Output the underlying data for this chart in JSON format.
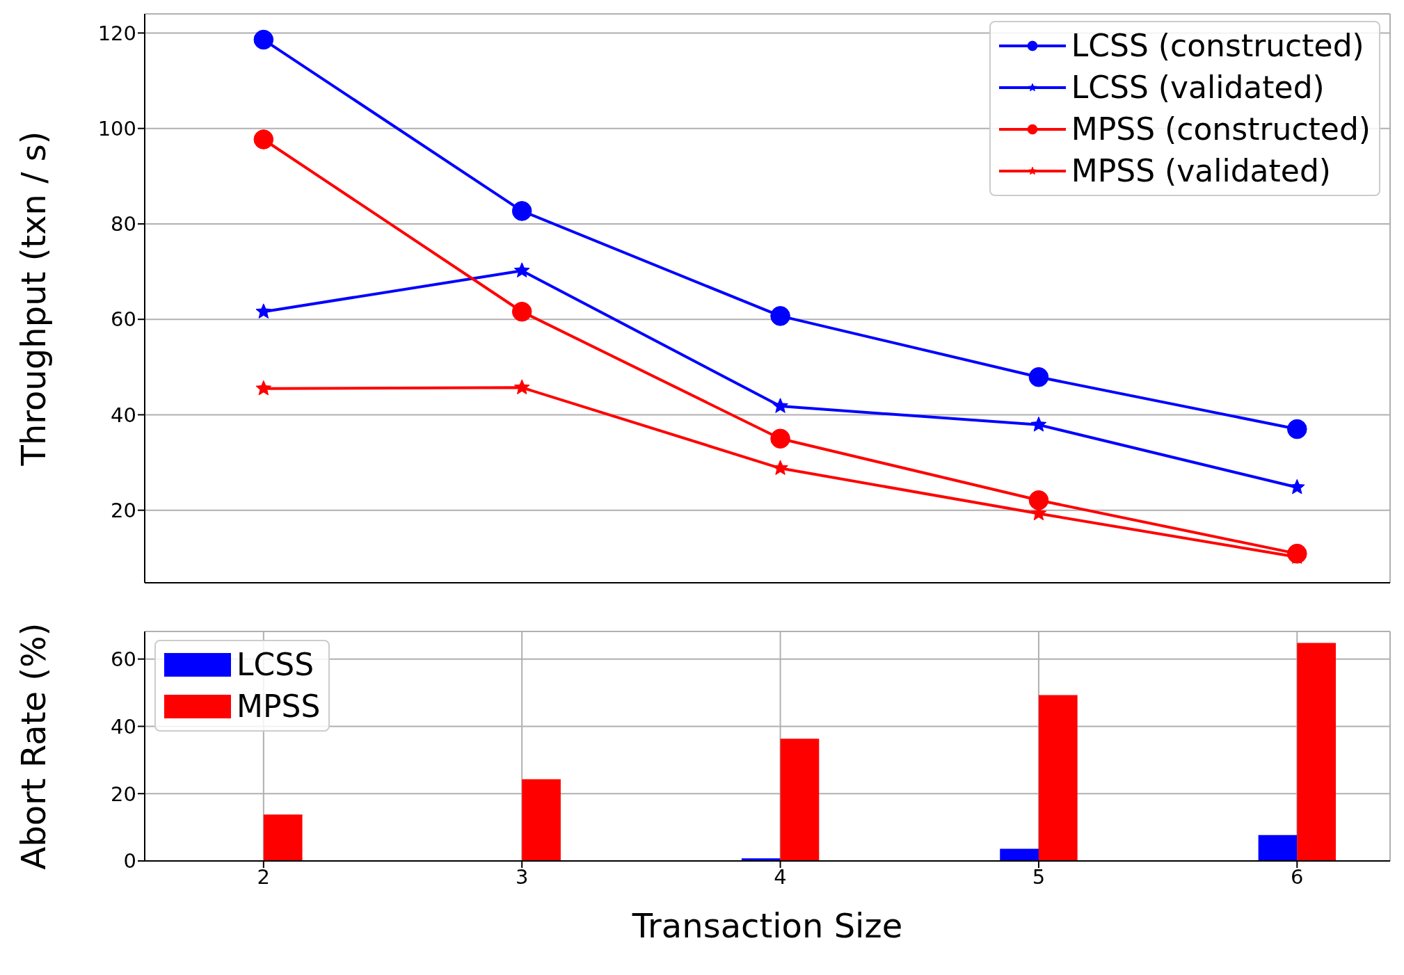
{
  "chart_data": [
    {
      "type": "line",
      "x": [
        2,
        3,
        4,
        5,
        6
      ],
      "xlim": [
        1.54,
        6.36
      ],
      "xticks": [
        2,
        3,
        4,
        5,
        6
      ],
      "ylim": [
        4.8,
        124
      ],
      "yticks": [
        20,
        40,
        60,
        80,
        100,
        120
      ],
      "ylabel": "Throughput (txn / s)",
      "grid": true,
      "legend": "top right",
      "tick_labels": "y",
      "line_style": "solid",
      "series": [
        {
          "name": "LCSS (constructed)",
          "color": "#0000ff",
          "marker": "circle",
          "values": [
            118.6,
            82.7,
            60.7,
            47.9,
            37
          ]
        },
        {
          "name": "LCSS (validated)",
          "color": "#0000ff",
          "marker": "star",
          "values": [
            61.6,
            70.2,
            41.8,
            37.9,
            24.8
          ]
        },
        {
          "name": "MPSS (constructed)",
          "color": "#ff0000",
          "marker": "circle",
          "values": [
            97.7,
            61.6,
            35,
            22.1,
            10.9
          ]
        },
        {
          "name": "MPSS (validated)",
          "color": "#ff0000",
          "marker": "star",
          "values": [
            45.5,
            45.7,
            28.8,
            19.3,
            10.2
          ]
        }
      ]
    },
    {
      "type": "bar",
      "x": [
        2,
        3,
        4,
        5,
        6
      ],
      "xlim": [
        1.54,
        6.36
      ],
      "xticks": [
        2,
        3,
        4,
        5,
        6
      ],
      "ylim": [
        0,
        68.2
      ],
      "yticks": [
        0,
        20,
        40,
        60
      ],
      "xlabel": "Transaction Size",
      "ylabel": "Abort Rate (%)",
      "grid": true,
      "legend": "top left",
      "series": [
        {
          "name": "LCSS",
          "color": "#0000ff",
          "values": [
            0,
            0,
            0.8,
            3.6,
            7.7
          ]
        },
        {
          "name": "MPSS",
          "color": "#ff0000",
          "values": [
            13.8,
            24.3,
            36.3,
            49.3,
            64.8
          ]
        }
      ]
    }
  ]
}
